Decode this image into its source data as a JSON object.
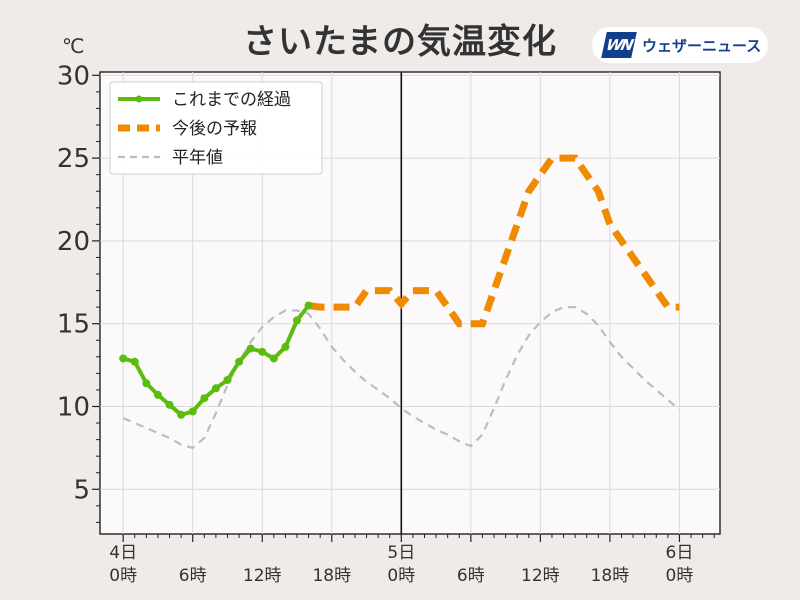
{
  "title": "さいたまの気温変化",
  "unit": "℃",
  "brand": {
    "logo": "WN",
    "name": "ウェザーニュース"
  },
  "chart_data": {
    "type": "line",
    "title": "さいたまの気温変化",
    "ylabel": "℃",
    "ylim": [
      2.3,
      30.2
    ],
    "xlim": [
      -2,
      51.5
    ],
    "yticks": [
      5,
      10,
      15,
      20,
      25,
      30
    ],
    "xticks": [
      {
        "x": 0,
        "top": "4日",
        "bottom": "0時"
      },
      {
        "x": 6,
        "top": "",
        "bottom": "6時"
      },
      {
        "x": 12,
        "top": "",
        "bottom": "12時"
      },
      {
        "x": 18,
        "top": "",
        "bottom": "18時"
      },
      {
        "x": 24,
        "top": "5日",
        "bottom": "0時"
      },
      {
        "x": 30,
        "top": "",
        "bottom": "6時"
      },
      {
        "x": 36,
        "top": "",
        "bottom": "12時"
      },
      {
        "x": 42,
        "top": "",
        "bottom": "18時"
      },
      {
        "x": 48,
        "top": "6日",
        "bottom": "0時"
      }
    ],
    "grid": true,
    "now_line_x": 24,
    "legend_position": "top-left",
    "series": [
      {
        "name": "これまでの経過",
        "color": "#5abd0e",
        "style": "solid-markers",
        "x": [
          0,
          1,
          2,
          3,
          4,
          5,
          6,
          7,
          8,
          9,
          10,
          11,
          12,
          13,
          14,
          15,
          16
        ],
        "y": [
          12.9,
          12.7,
          11.4,
          10.7,
          10.1,
          9.5,
          9.7,
          10.5,
          11.1,
          11.6,
          12.7,
          13.5,
          13.3,
          12.9,
          13.6,
          15.2,
          16.1
        ]
      },
      {
        "name": "今後の予報",
        "color": "#f08a00",
        "style": "dashed-thick",
        "x": [
          16,
          17,
          18,
          19,
          20,
          21,
          22,
          23,
          24,
          25,
          26,
          27,
          28,
          29,
          30,
          31,
          32,
          33,
          34,
          35,
          36,
          37,
          38,
          39,
          40,
          41,
          42,
          43,
          44,
          45,
          46,
          47,
          48
        ],
        "y": [
          16.1,
          16,
          16,
          16,
          16,
          17,
          17,
          17,
          16.2,
          17,
          17,
          17,
          16,
          15,
          15,
          15,
          17,
          19,
          21,
          23,
          24,
          25,
          25,
          25,
          24,
          23,
          21,
          20,
          19,
          18,
          17,
          16,
          16
        ]
      },
      {
        "name": "平年値",
        "color": "#bdbdbd",
        "style": "dashed-thin",
        "x": [
          0,
          1,
          2,
          3,
          4,
          5,
          6,
          7,
          8,
          9,
          10,
          11,
          12,
          13,
          14,
          15,
          16,
          17,
          18,
          19,
          20,
          21,
          22,
          23,
          24,
          25,
          26,
          27,
          28,
          29,
          30,
          31,
          32,
          33,
          34,
          35,
          36,
          37,
          38,
          39,
          40,
          41,
          42,
          43,
          44,
          45,
          46,
          47,
          48
        ],
        "y": [
          9.3,
          9.0,
          8.7,
          8.4,
          8.1,
          7.7,
          7.5,
          8.1,
          9.6,
          11.3,
          12.7,
          13.9,
          14.8,
          15.4,
          15.8,
          15.8,
          15.6,
          14.7,
          13.6,
          12.8,
          12.1,
          11.5,
          11.0,
          10.5,
          9.9,
          9.4,
          9.0,
          8.6,
          8.3,
          7.9,
          7.6,
          8.3,
          9.9,
          11.6,
          13.1,
          14.3,
          15.1,
          15.7,
          16.0,
          16.0,
          15.6,
          14.9,
          13.9,
          13.0,
          12.3,
          11.6,
          11.0,
          10.4,
          9.8
        ]
      }
    ]
  }
}
